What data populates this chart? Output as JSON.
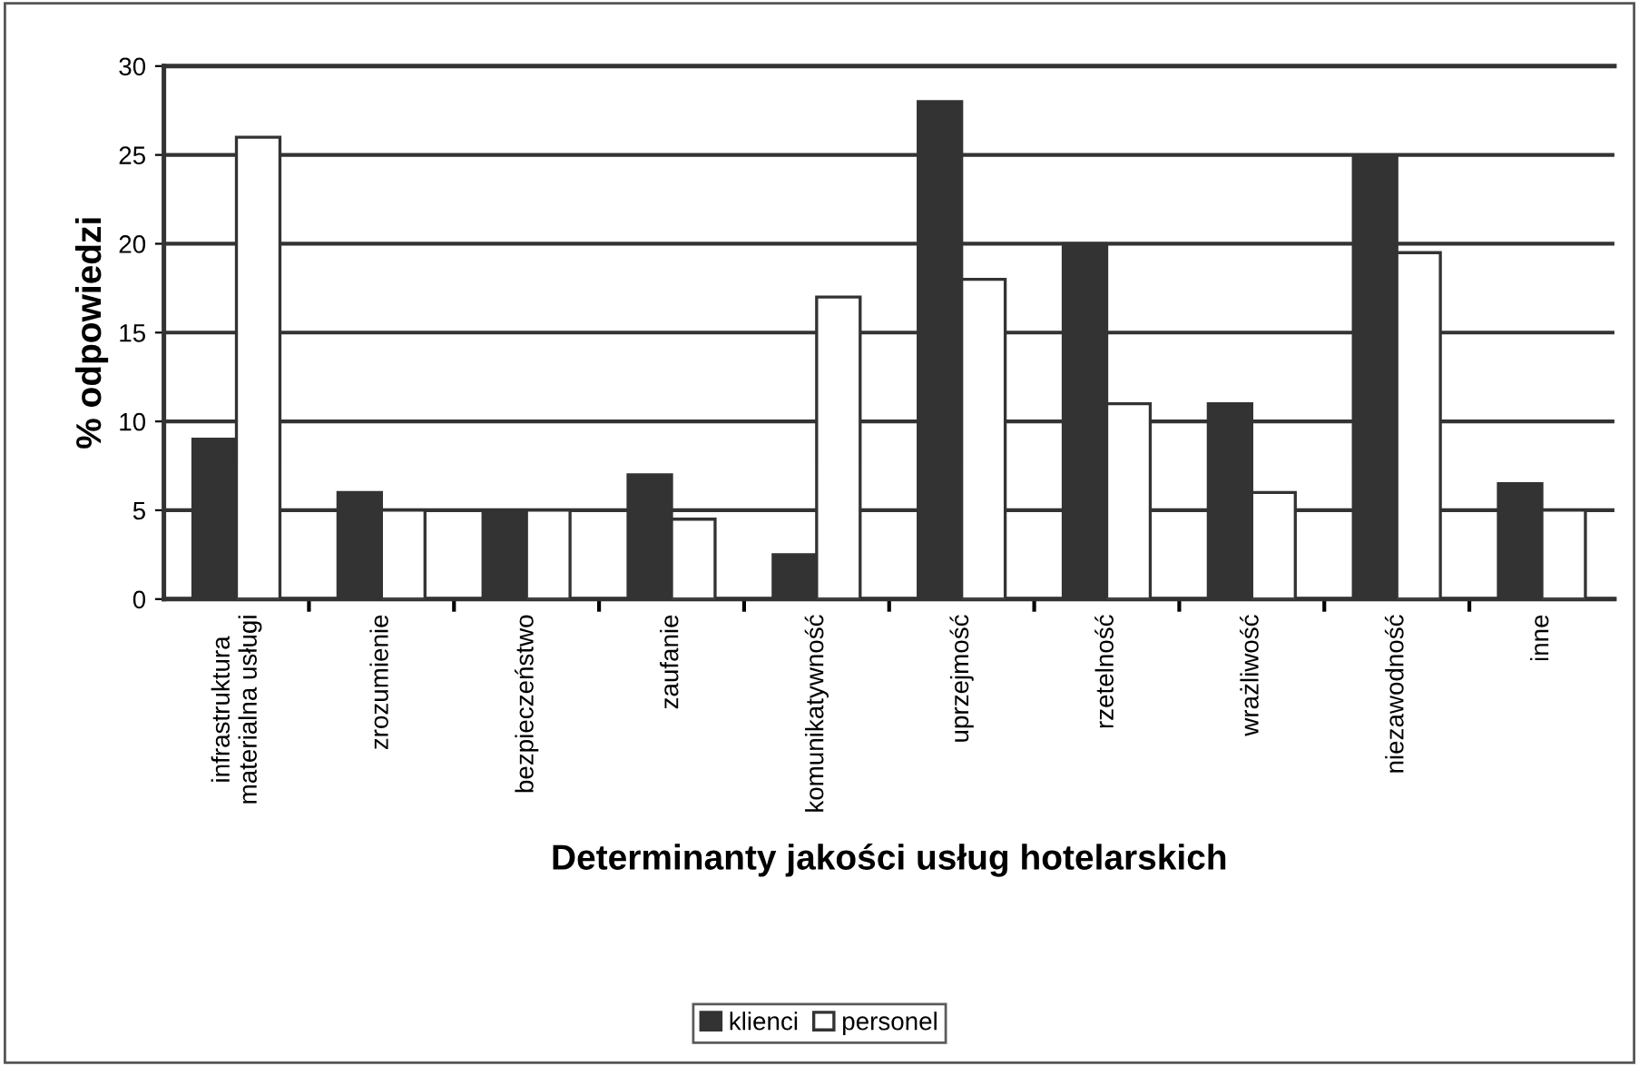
{
  "chart_data": {
    "type": "bar",
    "xlabel": "Determinanty jakości usług hotelarskich",
    "ylabel": "% odpowiedzi",
    "categories": [
      "infrastruktura\nmaterialna usługi",
      "zrozumienie",
      "bezpieczeństwo",
      "zaufanie",
      "komunikatywność",
      "uprzejmość",
      "rzetelność",
      "wrażliwość",
      "niezawodność",
      "inne"
    ],
    "series": [
      {
        "name": "klienci",
        "color": "#333333",
        "values": [
          9,
          6,
          5,
          7,
          2.5,
          28,
          20,
          11,
          25,
          6.5
        ]
      },
      {
        "name": "personel",
        "color": "#ffffff",
        "values": [
          26,
          5,
          5,
          4.5,
          17,
          18,
          11,
          6,
          19.5,
          5
        ]
      }
    ],
    "ylim": [
      0,
      30
    ],
    "yticks": [
      0,
      5,
      10,
      15,
      20,
      25,
      30
    ],
    "grid": "y",
    "legend": "bottom"
  }
}
